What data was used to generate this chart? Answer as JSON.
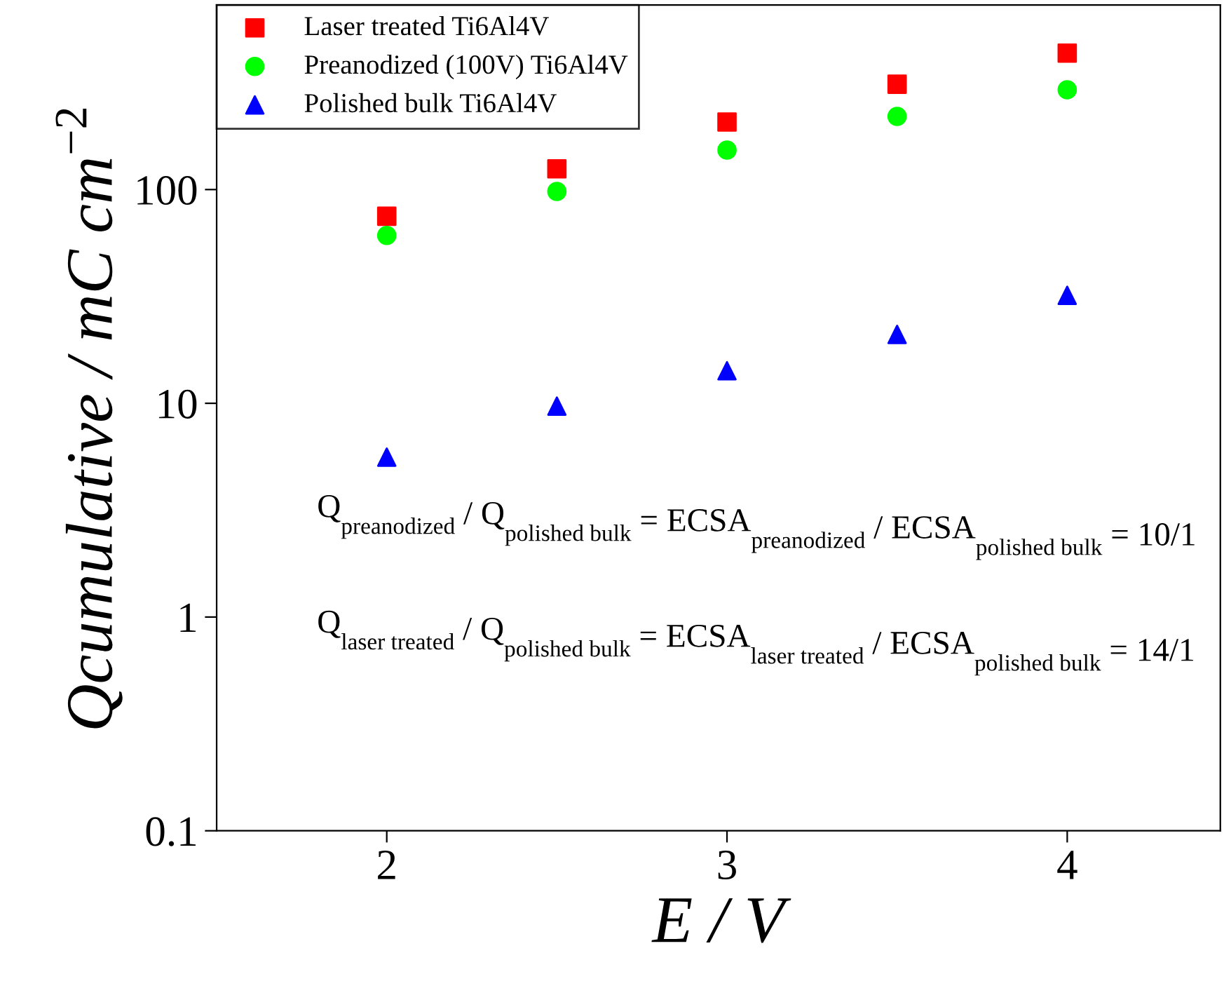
{
  "chart_data": {
    "type": "scatter",
    "xlabel": "E / V",
    "ylabel": "Qcumulative / mC cm$^{−2}$",
    "x": [
      2,
      2.5,
      3,
      3.5,
      4
    ],
    "series": [
      {
        "name": "Laser treated Ti6Al4V",
        "color": "#ff0000",
        "marker": "square",
        "values": [
          75,
          125,
          207,
          311,
          435
        ]
      },
      {
        "name": "Preanodized (100V) Ti6Al4V",
        "color": "#00ff00",
        "marker": "circle",
        "values": [
          61,
          98,
          153,
          220,
          293
        ]
      },
      {
        "name": "Polished bulk Ti6Al4V",
        "color": "#0000ff",
        "marker": "triangle",
        "values": [
          5.6,
          9.7,
          14.2,
          21,
          32
        ]
      }
    ],
    "log": "y",
    "xlim": [
      1.5,
      4.45
    ],
    "ylim": [
      0.1,
      730
    ],
    "xticks": [
      2,
      3,
      4
    ],
    "yticks": [
      0.1,
      1,
      10,
      100
    ],
    "legend": "top left",
    "grid": false,
    "annotations": [
      {
        "text": "Q$_{preanodized}$ / Q$_{polished bulk}$ = ECSA$_{preanodized}$ / ECSA$_{polished bulk}$ = 10/1"
      },
      {
        "text": "Q$_{laser treated}$ / Q$_{polished bulk}$ = ECSA$_{laser treated}$ / ECSA$_{polished bulk}$ = 14/1"
      }
    ]
  }
}
